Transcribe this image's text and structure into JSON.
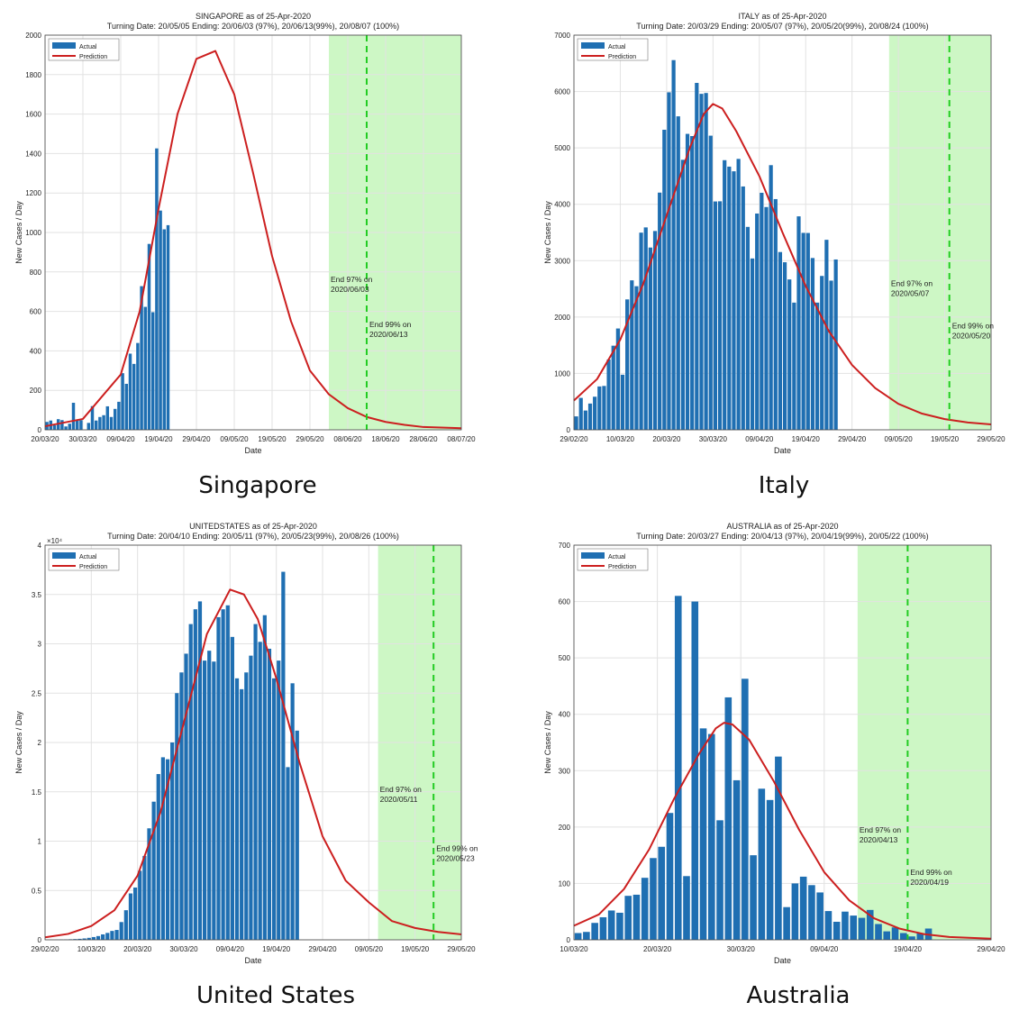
{
  "captions": [
    "Singapore",
    "Italy",
    "United States",
    "Australia"
  ],
  "colors": {
    "bar": "#1f6fb2",
    "line": "#cc1f1f",
    "band": "#cdf7c5",
    "dash": "#22cc22",
    "grid": "#e2e2e2"
  },
  "chart_data": [
    {
      "type": "bar",
      "title": "SINGAPORE as of 25-Apr-2020",
      "subtitle": "Turning Date: 20/05/05  Ending: 20/06/03 (97%), 20/06/13(99%), 20/08/07 (100%)",
      "xlabel": "Date",
      "ylabel": "New Cases / Day",
      "legend": [
        "Actual",
        "Prediction"
      ],
      "legend_position": "top-left",
      "grid": true,
      "x_start": "2020-03-20",
      "xlim": [
        "2020-03-20",
        "2020-07-08"
      ],
      "ylim": [
        0,
        2000
      ],
      "yticks": [
        0,
        200,
        400,
        600,
        800,
        1000,
        1200,
        1400,
        1600,
        1800,
        2000
      ],
      "ytick_labels": [
        "0",
        "200",
        "400",
        "600",
        "800",
        "1000",
        "1200",
        "1400",
        "1600",
        "1800",
        "2000"
      ],
      "xtick_labels": [
        "20/03/20",
        "30/03/20",
        "09/04/20",
        "19/04/20",
        "29/04/20",
        "09/05/20",
        "19/05/20",
        "29/05/20",
        "08/06/20",
        "18/06/20",
        "28/06/20",
        "08/07/20"
      ],
      "xtick_dates": [
        "2020-03-20",
        "2020-03-30",
        "2020-04-09",
        "2020-04-19",
        "2020-04-29",
        "2020-05-09",
        "2020-05-19",
        "2020-05-29",
        "2020-06-08",
        "2020-06-18",
        "2020-06-28",
        "2020-07-08"
      ],
      "actual": [
        40,
        47,
        23,
        54,
        49,
        17,
        31,
        137,
        52,
        49,
        0,
        35,
        120,
        47,
        65,
        74,
        119,
        65,
        106,
        142,
        287,
        233,
        386,
        334,
        440,
        728,
        623,
        942,
        596,
        1426,
        1111,
        1016,
        1037
      ],
      "prediction": [
        [
          0,
          18
        ],
        [
          10,
          55
        ],
        [
          20,
          280
        ],
        [
          25,
          600
        ],
        [
          30,
          1120
        ],
        [
          35,
          1600
        ],
        [
          40,
          1880
        ],
        [
          45,
          1920
        ],
        [
          50,
          1700
        ],
        [
          55,
          1300
        ],
        [
          60,
          880
        ],
        [
          65,
          550
        ],
        [
          70,
          300
        ],
        [
          75,
          180
        ],
        [
          80,
          110
        ],
        [
          85,
          65
        ],
        [
          90,
          40
        ],
        [
          95,
          25
        ],
        [
          100,
          14
        ],
        [
          110,
          8
        ]
      ],
      "band_start": "2020-06-03",
      "band_end": "2020-07-08",
      "band_label": "End 97% on\n2020/06/03",
      "dash_date": "2020-06-13",
      "dash_label": "End 99% on\n2020/06/13",
      "label1_y": 750,
      "label2_y": 520
    },
    {
      "type": "bar",
      "title": "ITALY as of 25-Apr-2020",
      "subtitle": "Turning Date: 20/03/29  Ending: 20/05/07 (97%), 20/05/20(99%), 20/08/24 (100%)",
      "xlabel": "Date",
      "ylabel": "New Cases / Day",
      "legend": [
        "Actual",
        "Prediction"
      ],
      "legend_position": "top-left",
      "grid": true,
      "x_start": "2020-02-29",
      "xlim": [
        "2020-02-29",
        "2020-05-29"
      ],
      "ylim": [
        0,
        7000
      ],
      "yticks": [
        0,
        1000,
        2000,
        3000,
        4000,
        5000,
        6000,
        7000
      ],
      "ytick_labels": [
        "0",
        "1000",
        "2000",
        "3000",
        "4000",
        "5000",
        "6000",
        "7000"
      ],
      "xtick_labels": [
        "29/02/20",
        "10/03/20",
        "20/03/20",
        "30/03/20",
        "09/04/20",
        "19/04/20",
        "29/04/20",
        "09/05/20",
        "19/05/20",
        "29/05/20"
      ],
      "xtick_dates": [
        "2020-02-29",
        "2020-03-10",
        "2020-03-20",
        "2020-03-30",
        "2020-04-09",
        "2020-04-19",
        "2020-04-29",
        "2020-05-09",
        "2020-05-19",
        "2020-05-29"
      ],
      "actual": [
        238,
        566,
        342,
        466,
        587,
        769,
        778,
        1247,
        1492,
        1797,
        977,
        2313,
        2651,
        2547,
        3497,
        3590,
        3233,
        3526,
        4207,
        5322,
        5986,
        6557,
        5560,
        4789,
        5249,
        5210,
        6153,
        5959,
        5974,
        5217,
        4050,
        4053,
        4782,
        4668,
        4585,
        4805,
        4316,
        3599,
        3039,
        3836,
        4204,
        3951,
        4694,
        4092,
        3153,
        2972,
        2667,
        2256,
        3786,
        3493,
        3491,
        3047,
        2256,
        2729,
        3370,
        2646,
        3021
      ],
      "prediction": [
        [
          0,
          520
        ],
        [
          5,
          900
        ],
        [
          10,
          1600
        ],
        [
          15,
          2600
        ],
        [
          20,
          3800
        ],
        [
          25,
          5000
        ],
        [
          28,
          5600
        ],
        [
          30,
          5780
        ],
        [
          32,
          5700
        ],
        [
          35,
          5300
        ],
        [
          40,
          4500
        ],
        [
          45,
          3500
        ],
        [
          50,
          2550
        ],
        [
          55,
          1750
        ],
        [
          60,
          1150
        ],
        [
          65,
          740
        ],
        [
          70,
          460
        ],
        [
          75,
          290
        ],
        [
          80,
          190
        ],
        [
          85,
          130
        ],
        [
          90,
          95
        ]
      ],
      "band_start": "2020-05-07",
      "band_end": "2020-05-29",
      "band_label": "End 97% on\n2020/05/07",
      "dash_date": "2020-05-20",
      "dash_label": "End 99% on\n2020/05/20",
      "label1_y": 2550,
      "label2_y": 1800
    },
    {
      "type": "bar",
      "title": "UNITEDSTATES as of 25-Apr-2020",
      "subtitle": "Turning Date: 20/04/10  Ending: 20/05/11 (97%), 20/05/23(99%), 20/08/26 (100%)",
      "xlabel": "Date",
      "ylabel": "New Cases / Day",
      "y_multiplier": "×10⁴",
      "legend": [
        "Actual",
        "Prediction"
      ],
      "legend_position": "top-left",
      "grid": true,
      "x_start": "2020-02-29",
      "xlim": [
        "2020-02-29",
        "2020-05-29"
      ],
      "ylim": [
        0,
        40000
      ],
      "yticks": [
        0,
        5000,
        10000,
        15000,
        20000,
        25000,
        30000,
        35000,
        40000
      ],
      "ytick_labels": [
        "0",
        "0.5",
        "1",
        "1.5",
        "2",
        "2.5",
        "3",
        "3.5",
        "4"
      ],
      "xtick_labels": [
        "29/02/20",
        "10/03/20",
        "20/03/20",
        "30/03/20",
        "09/04/20",
        "19/04/20",
        "29/04/20",
        "09/05/20",
        "19/05/20",
        "29/05/20"
      ],
      "xtick_dates": [
        "2020-02-29",
        "2020-03-10",
        "2020-03-20",
        "2020-03-30",
        "2020-04-09",
        "2020-04-19",
        "2020-04-29",
        "2020-05-09",
        "2020-05-19",
        "2020-05-29"
      ],
      "actual": [
        5,
        8,
        17,
        25,
        35,
        55,
        75,
        100,
        140,
        200,
        280,
        380,
        550,
        700,
        900,
        1000,
        1800,
        3000,
        4700,
        5300,
        7000,
        8500,
        11300,
        14000,
        16800,
        18500,
        18300,
        20000,
        25000,
        27100,
        29000,
        32000,
        33500,
        34300,
        28300,
        29300,
        28200,
        32700,
        33500,
        33900,
        30700,
        26500,
        25400,
        27100,
        28800,
        32000,
        30200,
        32900,
        29500,
        26500,
        28300,
        37300,
        17500,
        26000,
        21200
      ],
      "prediction": [
        [
          0,
          250
        ],
        [
          5,
          600
        ],
        [
          10,
          1400
        ],
        [
          15,
          3000
        ],
        [
          20,
          6500
        ],
        [
          25,
          13000
        ],
        [
          30,
          22000
        ],
        [
          35,
          31000
        ],
        [
          40,
          35500
        ],
        [
          43,
          35000
        ],
        [
          46,
          32500
        ],
        [
          50,
          26500
        ],
        [
          55,
          18000
        ],
        [
          60,
          10500
        ],
        [
          65,
          6000
        ],
        [
          70,
          3800
        ],
        [
          75,
          1900
        ],
        [
          80,
          1200
        ],
        [
          85,
          800
        ],
        [
          90,
          550
        ]
      ],
      "band_start": "2020-05-11",
      "band_end": "2020-05-29",
      "band_label": "End 97% on\n2020/05/11",
      "dash_date": "2020-05-23",
      "dash_label": "End 99% on\n2020/05/23",
      "label1_y": 15000,
      "label2_y": 9000
    },
    {
      "type": "bar",
      "title": "AUSTRALIA as of 25-Apr-2020",
      "subtitle": "Turning Date: 20/03/27  Ending: 20/04/13 (97%), 20/04/19(99%), 20/05/22 (100%)",
      "xlabel": "Date",
      "ylabel": "New Cases / Day",
      "legend": [
        "Actual",
        "Prediction"
      ],
      "legend_position": "top-left",
      "grid": true,
      "x_start": "2020-03-10",
      "xlim": [
        "2020-03-10",
        "2020-04-29"
      ],
      "ylim": [
        0,
        700
      ],
      "yticks": [
        0,
        100,
        200,
        300,
        400,
        500,
        600,
        700
      ],
      "ytick_labels": [
        "0",
        "100",
        "200",
        "300",
        "400",
        "500",
        "600",
        "700"
      ],
      "xtick_labels": [
        "10/03/20",
        "20/03/20",
        "30/03/20",
        "09/04/20",
        "19/04/20",
        "29/04/20"
      ],
      "xtick_dates": [
        "2020-03-10",
        "2020-03-20",
        "2020-03-30",
        "2020-04-09",
        "2020-04-19",
        "2020-04-29"
      ],
      "actual": [
        12,
        14,
        30,
        40,
        52,
        48,
        78,
        80,
        110,
        145,
        165,
        225,
        610,
        113,
        600,
        375,
        365,
        212,
        430,
        283,
        463,
        150,
        268,
        248,
        325,
        58,
        100,
        112,
        97,
        84,
        51,
        32,
        50,
        43,
        39,
        53,
        28,
        15,
        22,
        12,
        6,
        12,
        20
      ],
      "prediction": [
        [
          0,
          25
        ],
        [
          3,
          45
        ],
        [
          6,
          90
        ],
        [
          9,
          160
        ],
        [
          12,
          250
        ],
        [
          15,
          330
        ],
        [
          17,
          375
        ],
        [
          18,
          385
        ],
        [
          19,
          382
        ],
        [
          21,
          355
        ],
        [
          24,
          280
        ],
        [
          27,
          195
        ],
        [
          30,
          120
        ],
        [
          33,
          70
        ],
        [
          36,
          38
        ],
        [
          39,
          20
        ],
        [
          42,
          10
        ],
        [
          45,
          5
        ],
        [
          50,
          2
        ]
      ],
      "band_start": "2020-04-13",
      "band_end": "2020-04-29",
      "band_label": "End 97% on\n2020/04/13",
      "dash_date": "2020-04-19",
      "dash_label": "End 99% on\n2020/04/19",
      "label1_y": 190,
      "label2_y": 115
    }
  ]
}
